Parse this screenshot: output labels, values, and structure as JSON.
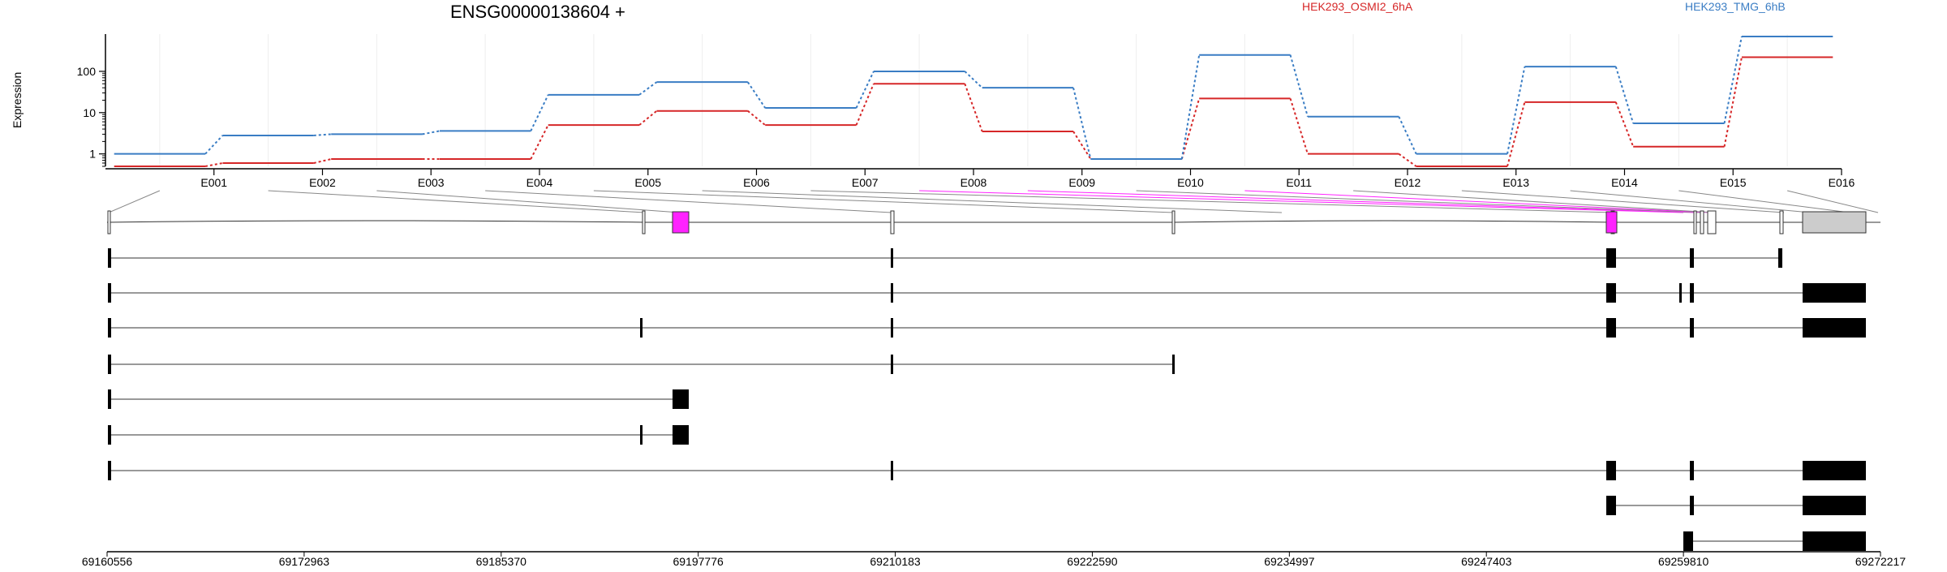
{
  "chart_data": {
    "type": "line",
    "title": "ENSG00000138604 +",
    "ylabel": "Expression",
    "yscale": "log",
    "ylim": [
      0.5,
      800
    ],
    "yticks": [
      1,
      10,
      100
    ],
    "grid": true,
    "legend_placement": "top",
    "categories": [
      "E001",
      "E002",
      "E003",
      "E004",
      "E005",
      "E006",
      "E007",
      "E008",
      "E009",
      "E010",
      "E011",
      "E012",
      "E013",
      "E014",
      "E015",
      "E016"
    ],
    "series": [
      {
        "name": "HEK293_OSMI2_6hA",
        "color": "#d62728",
        "values": [
          0.5,
          0.6,
          0.75,
          0.75,
          5,
          11,
          5,
          50,
          3.5,
          0.75,
          22,
          1,
          0.5,
          18,
          1.5,
          220
        ]
      },
      {
        "name": "HEK293_TMG_6hB",
        "color": "#3a7dc4",
        "values": [
          1,
          2.8,
          3,
          3.6,
          27,
          55,
          13,
          100,
          40,
          0.75,
          250,
          8,
          1,
          130,
          5.5,
          700
        ]
      }
    ],
    "genomic_axis": {
      "tick_labels": [
        "69160556",
        "69172963",
        "69185370",
        "69197776",
        "69210183",
        "69222590",
        "69234997",
        "69247403",
        "69259810",
        "69272217"
      ],
      "range": [
        69160556,
        69272217
      ]
    },
    "highlight_color": "#ff22ff"
  }
}
